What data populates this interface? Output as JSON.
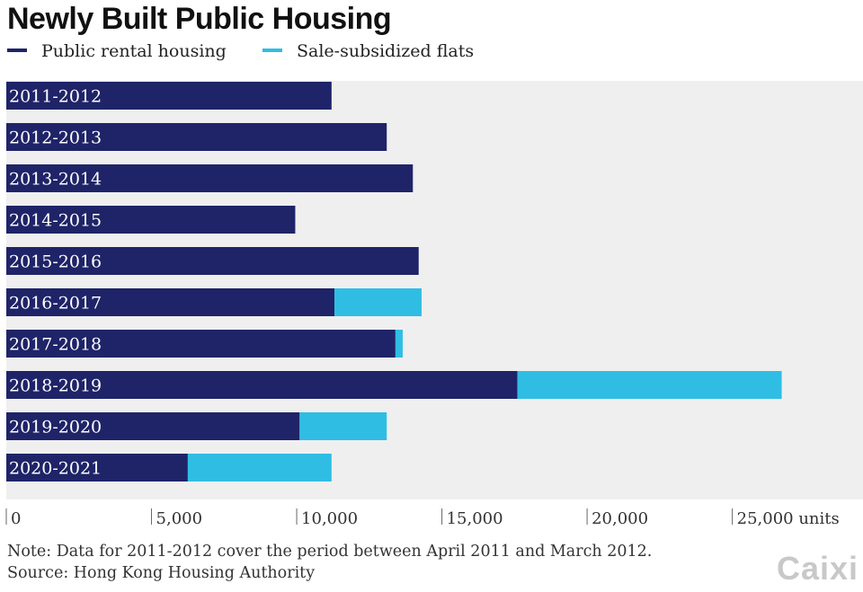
{
  "chart_data": {
    "type": "bar",
    "orientation": "horizontal",
    "stacked": true,
    "title": "Newly Built Public Housing",
    "categories": [
      "2011-2012",
      "2012-2013",
      "2013-2014",
      "2014-2015",
      "2015-2016",
      "2016-2017",
      "2017-2018",
      "2018-2019",
      "2019-2020",
      "2020-2021"
    ],
    "series": [
      {
        "name": "Public rental housing",
        "color": "#1f2468",
        "values": [
          11200,
          13100,
          14000,
          9950,
          14200,
          11300,
          13400,
          17600,
          10100,
          6250
        ]
      },
      {
        "name": "Sale-subsidized flats",
        "color": "#30bde4",
        "values": [
          0,
          0,
          0,
          0,
          0,
          3000,
          250,
          9100,
          3000,
          4950
        ]
      }
    ],
    "xlim": [
      0,
      29500
    ],
    "ticks": [
      {
        "value": 0,
        "label": "0"
      },
      {
        "value": 5000,
        "label": "5,000"
      },
      {
        "value": 10000,
        "label": "10,000"
      },
      {
        "value": 15000,
        "label": "15,000"
      },
      {
        "value": 20000,
        "label": "20,000"
      },
      {
        "value": 25000,
        "label": "25,000 units"
      }
    ],
    "legend_position": "top-left"
  },
  "note": "Note: Data for 2011-2012 cover the period between April 2011 and March 2012.",
  "source": "Source: Hong Kong Housing Authority",
  "watermark": "Caixin",
  "colors": {
    "plot_bg": "#efefef",
    "label_text": "#ffffff",
    "tick_text": "#333333"
  }
}
